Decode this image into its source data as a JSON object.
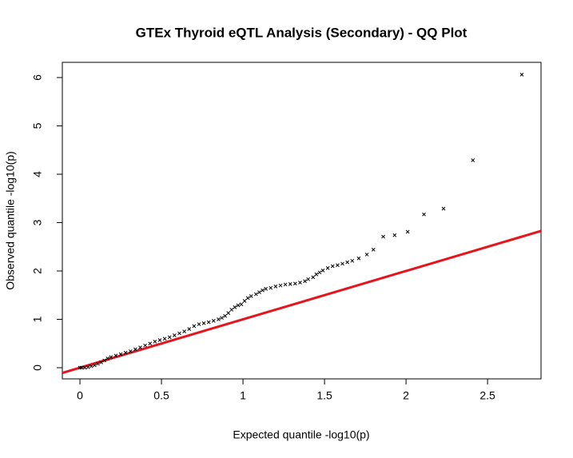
{
  "chart_data": {
    "type": "scatter",
    "title": "GTEx Thyroid eQTL Analysis (Secondary) - QQ Plot",
    "x_label": "Expected quantile -log10(p)",
    "y_label": "Observed quantile -log10(p)",
    "x": [
      2.71,
      2.41,
      2.23,
      2.11,
      2.01,
      1.93,
      1.86,
      1.8,
      1.76,
      1.71,
      1.67,
      1.64,
      1.61,
      1.58,
      1.55,
      1.52,
      1.49,
      1.47,
      1.45,
      1.43,
      1.4,
      1.38,
      1.35,
      1.32,
      1.29,
      1.26,
      1.23,
      1.2,
      1.17,
      1.14,
      1.12,
      1.1,
      1.08,
      1.05,
      1.03,
      1.01,
      0.99,
      0.97,
      0.95,
      0.93,
      0.91,
      0.89,
      0.87,
      0.85,
      0.82,
      0.79,
      0.76,
      0.73,
      0.7,
      0.67,
      0.64,
      0.61,
      0.58,
      0.55,
      0.52,
      0.49,
      0.46,
      0.43,
      0.4,
      0.37,
      0.34,
      0.31,
      0.28,
      0.25,
      0.22,
      0.19,
      0.17,
      0.15,
      0.13,
      0.11,
      0.09,
      0.07,
      0.05,
      0.03,
      0.01,
      0.0
    ],
    "values": [
      6.06,
      4.29,
      3.29,
      3.17,
      2.81,
      2.74,
      2.71,
      2.44,
      2.34,
      2.26,
      2.21,
      2.18,
      2.15,
      2.12,
      2.1,
      2.06,
      2.01,
      1.97,
      1.93,
      1.87,
      1.83,
      1.79,
      1.76,
      1.74,
      1.73,
      1.72,
      1.7,
      1.68,
      1.65,
      1.63,
      1.6,
      1.56,
      1.52,
      1.48,
      1.44,
      1.38,
      1.31,
      1.29,
      1.25,
      1.2,
      1.13,
      1.07,
      1.03,
      1.0,
      0.97,
      0.94,
      0.92,
      0.9,
      0.86,
      0.8,
      0.75,
      0.71,
      0.67,
      0.63,
      0.6,
      0.57,
      0.54,
      0.5,
      0.46,
      0.42,
      0.38,
      0.34,
      0.31,
      0.28,
      0.25,
      0.22,
      0.19,
      0.15,
      0.11,
      0.08,
      0.05,
      0.03,
      0.01,
      0.0,
      0.0,
      0.0
    ],
    "color": "#000000",
    "line_color": "#e8141c",
    "xlim": [
      -0.108,
      2.828
    ],
    "ylim": [
      -0.231,
      6.314
    ],
    "xticks": [
      0,
      0.5,
      1,
      1.5,
      2,
      2.5
    ],
    "yticks": [
      0,
      1,
      2,
      3,
      4,
      5,
      6
    ]
  }
}
